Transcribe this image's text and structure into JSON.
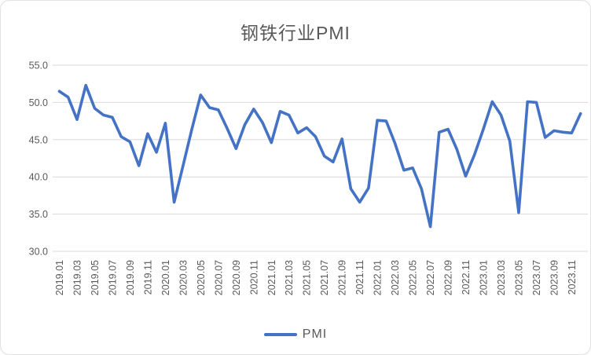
{
  "chart_data": {
    "type": "line",
    "title": "钢铁行业PMI",
    "legend_position": "bottom",
    "grid": "horizontal",
    "ylim": [
      30,
      55
    ],
    "ytick_step": 5,
    "y_tick_labels": [
      "30.0",
      "35.0",
      "40.0",
      "45.0",
      "50.0",
      "55.0"
    ],
    "x_tick_labels": [
      "2019.01",
      "2019.03",
      "2019.05",
      "2019.07",
      "2019.09",
      "2019.11",
      "2020.01",
      "2020.03",
      "2020.05",
      "2020.07",
      "2020.09",
      "2020.11",
      "2021.01",
      "2021.03",
      "2021.05",
      "2021.07",
      "2021.09",
      "2021.11",
      "2022.01",
      "2022.03",
      "2022.05",
      "2022.07",
      "2022.09",
      "2022.11",
      "2023.01",
      "2023.03",
      "2023.05",
      "2023.07",
      "2023.09",
      "2023.11"
    ],
    "categories": [
      "2019.01",
      "2019.02",
      "2019.03",
      "2019.04",
      "2019.05",
      "2019.06",
      "2019.07",
      "2019.08",
      "2019.09",
      "2019.10",
      "2019.11",
      "2019.12",
      "2020.01",
      "2020.02",
      "2020.03",
      "2020.04",
      "2020.05",
      "2020.06",
      "2020.07",
      "2020.08",
      "2020.09",
      "2020.10",
      "2020.11",
      "2020.12",
      "2021.01",
      "2021.02",
      "2021.03",
      "2021.04",
      "2021.05",
      "2021.06",
      "2021.07",
      "2021.08",
      "2021.09",
      "2021.10",
      "2021.11",
      "2021.12",
      "2022.01",
      "2022.02",
      "2022.03",
      "2022.04",
      "2022.05",
      "2022.06",
      "2022.07",
      "2022.08",
      "2022.09",
      "2022.10",
      "2022.11",
      "2022.12",
      "2023.01",
      "2023.02",
      "2023.03",
      "2023.04",
      "2023.05",
      "2023.06",
      "2023.07",
      "2023.08",
      "2023.09",
      "2023.10",
      "2023.11",
      "2023.12"
    ],
    "series": [
      {
        "name": "PMI",
        "color": "#4472C4",
        "values": [
          51.5,
          50.7,
          47.7,
          52.3,
          49.2,
          48.3,
          48.0,
          45.4,
          44.7,
          41.5,
          45.8,
          43.3,
          47.2,
          36.6,
          41.5,
          46.4,
          51.0,
          49.3,
          49.0,
          46.5,
          43.8,
          47.0,
          49.1,
          47.3,
          44.6,
          48.8,
          48.3,
          45.9,
          46.6,
          45.4,
          42.8,
          42.0,
          45.1,
          38.4,
          36.6,
          38.5,
          47.6,
          47.5,
          44.5,
          40.9,
          41.2,
          38.4,
          33.3,
          46.0,
          46.4,
          43.7,
          40.1,
          43.0,
          46.4,
          50.1,
          48.3,
          44.8,
          35.2,
          50.1,
          50.0,
          45.3,
          46.2,
          46.0,
          45.9,
          48.5
        ]
      }
    ]
  },
  "colors": {
    "line": "#4472C4",
    "grid": "#D9D9D9",
    "text": "#595959"
  }
}
